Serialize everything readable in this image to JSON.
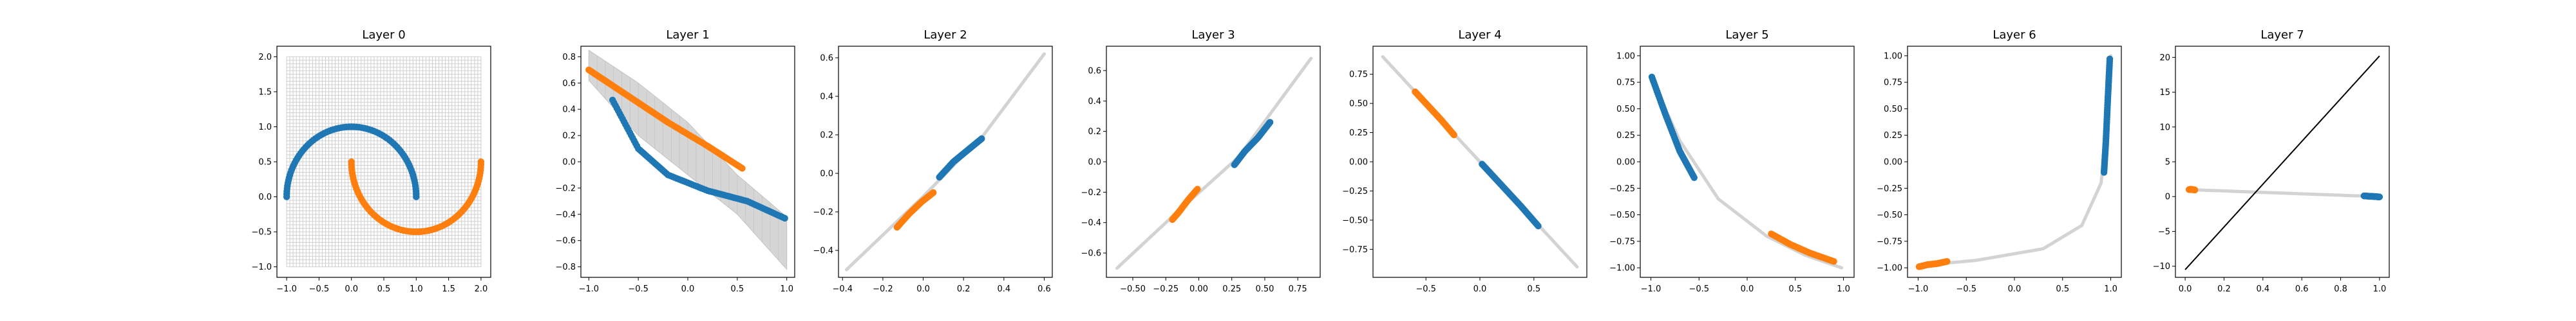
{
  "chart_data": [
    {
      "type": "scatter",
      "title": "Layer 0",
      "xlim": [
        -1.15,
        2.15
      ],
      "ylim": [
        -1.15,
        2.15
      ],
      "xticks": [
        -1.0,
        -0.5,
        0.0,
        0.5,
        1.0,
        1.5,
        2.0
      ],
      "yticks": [
        -1.0,
        -0.5,
        0.0,
        0.5,
        1.0,
        1.5,
        2.0
      ],
      "xtick_labels": [
        "−1.0",
        "−0.5",
        "0.0",
        "0.5",
        "1.0",
        "1.5",
        "2.0"
      ],
      "ytick_labels": [
        "−1.0",
        "−0.5",
        "0.0",
        "0.5",
        "1.0",
        "1.5",
        "2.0"
      ],
      "grid": "input mesh, x and y from -1.0 to 2.0",
      "series": [
        {
          "color": "#1f77b4",
          "shape": "upper half circle",
          "x": [
            -1.0,
            -0.866,
            -0.5,
            0.0,
            0.5,
            0.866,
            1.0
          ],
          "y": [
            0.0,
            0.5,
            0.866,
            1.0,
            0.866,
            0.5,
            0.0
          ]
        },
        {
          "color": "#ff7f0e",
          "shape": "lower half circle",
          "x": [
            0.0,
            0.134,
            0.5,
            1.0,
            1.5,
            1.866,
            2.0
          ],
          "y": [
            0.5,
            0.0,
            -0.366,
            -0.5,
            -0.366,
            0.0,
            0.5
          ]
        }
      ]
    },
    {
      "type": "scatter",
      "title": "Layer 1",
      "xlim": [
        -1.08,
        1.08
      ],
      "ylim": [
        -0.88,
        0.88
      ],
      "xticks": [
        -1.0,
        -0.5,
        0.0,
        0.5,
        1.0
      ],
      "yticks": [
        -0.8,
        -0.6,
        -0.4,
        -0.2,
        0.0,
        0.2,
        0.4,
        0.6,
        0.8
      ],
      "xtick_labels": [
        "−1.0",
        "−0.5",
        "0.0",
        "0.5",
        "1.0"
      ],
      "ytick_labels": [
        "−0.8",
        "−0.6",
        "−0.4",
        "−0.2",
        "0.0",
        "0.2",
        "0.4",
        "0.6",
        "0.8"
      ],
      "band": {
        "x": [
          -1.0,
          -0.5,
          0.0,
          0.5,
          1.0
        ],
        "upper": [
          0.85,
          0.6,
          0.3,
          -0.1,
          -0.42
        ],
        "lower": [
          0.62,
          0.2,
          -0.1,
          -0.4,
          -0.82
        ]
      },
      "series": [
        {
          "color": "#1f77b4",
          "x": [
            -0.76,
            -0.5,
            -0.2,
            0.2,
            0.6,
            0.98
          ],
          "y": [
            0.47,
            0.1,
            -0.1,
            -0.22,
            -0.3,
            -0.43
          ]
        },
        {
          "color": "#ff7f0e",
          "x": [
            -1.0,
            -0.8,
            -0.5,
            -0.2,
            0.2,
            0.55
          ],
          "y": [
            0.7,
            0.6,
            0.45,
            0.3,
            0.12,
            -0.05
          ]
        }
      ]
    },
    {
      "type": "scatter",
      "title": "Layer 2",
      "xlim": [
        -0.42,
        0.64
      ],
      "ylim": [
        -0.54,
        0.66
      ],
      "xticks": [
        -0.4,
        -0.2,
        0.0,
        0.2,
        0.4,
        0.6
      ],
      "yticks": [
        -0.4,
        -0.2,
        0.0,
        0.2,
        0.4,
        0.6
      ],
      "xtick_labels": [
        "−0.4",
        "−0.2",
        "0.0",
        "0.2",
        "0.4",
        "0.6"
      ],
      "ytick_labels": [
        "−0.4",
        "−0.2",
        "0.0",
        "0.2",
        "0.4",
        "0.6"
      ],
      "curve": {
        "x": [
          -0.38,
          0.0,
          0.3,
          0.6
        ],
        "y": [
          -0.5,
          -0.12,
          0.2,
          0.62
        ]
      },
      "series": [
        {
          "color": "#1f77b4",
          "x": [
            0.08,
            0.15,
            0.22,
            0.29
          ],
          "y": [
            -0.02,
            0.06,
            0.12,
            0.18
          ]
        },
        {
          "color": "#ff7f0e",
          "x": [
            -0.13,
            -0.07,
            -0.01,
            0.05
          ],
          "y": [
            -0.28,
            -0.21,
            -0.15,
            -0.1
          ]
        }
      ]
    },
    {
      "type": "scatter",
      "title": "Layer 3",
      "xlim": [
        -0.7,
        0.92
      ],
      "ylim": [
        -0.76,
        0.76
      ],
      "xticks": [
        -0.5,
        -0.25,
        0.0,
        0.25,
        0.5,
        0.75
      ],
      "yticks": [
        -0.6,
        -0.4,
        -0.2,
        0.0,
        0.2,
        0.4,
        0.6
      ],
      "xtick_labels": [
        "−0.50",
        "−0.25",
        "0.00",
        "0.25",
        "0.50",
        "0.75"
      ],
      "ytick_labels": [
        "−0.6",
        "−0.4",
        "−0.2",
        "0.0",
        "0.2",
        "0.4",
        "0.6"
      ],
      "curve": {
        "x": [
          -0.62,
          -0.2,
          0.3,
          0.85
        ],
        "y": [
          -0.7,
          -0.36,
          0.03,
          0.68
        ]
      },
      "series": [
        {
          "color": "#1f77b4",
          "x": [
            0.27,
            0.35,
            0.45,
            0.54
          ],
          "y": [
            -0.02,
            0.07,
            0.16,
            0.26
          ]
        },
        {
          "color": "#ff7f0e",
          "x": [
            -0.2,
            -0.15,
            -0.08,
            -0.01
          ],
          "y": [
            -0.38,
            -0.33,
            -0.25,
            -0.18
          ]
        }
      ]
    },
    {
      "type": "scatter",
      "title": "Layer 4",
      "xlim": [
        -0.99,
        0.99
      ],
      "ylim": [
        -0.99,
        0.99
      ],
      "xticks": [
        -0.5,
        0.0,
        0.5
      ],
      "yticks": [
        -0.75,
        -0.5,
        -0.25,
        0.0,
        0.25,
        0.5,
        0.75
      ],
      "xtick_labels": [
        "−0.5",
        "0.0",
        "0.5"
      ],
      "ytick_labels": [
        "−0.75",
        "−0.50",
        "−0.25",
        "0.00",
        "0.25",
        "0.50",
        "0.75"
      ],
      "curve": {
        "x": [
          -0.9,
          0.0,
          0.9
        ],
        "y": [
          0.9,
          0.0,
          -0.9
        ]
      },
      "series": [
        {
          "color": "#1f77b4",
          "x": [
            0.02,
            0.2,
            0.38,
            0.54
          ],
          "y": [
            -0.02,
            -0.2,
            -0.38,
            -0.55
          ]
        },
        {
          "color": "#ff7f0e",
          "x": [
            -0.6,
            -0.48,
            -0.36,
            -0.24
          ],
          "y": [
            0.6,
            0.48,
            0.36,
            0.23
          ]
        }
      ]
    },
    {
      "type": "scatter",
      "title": "Layer 5",
      "xlim": [
        -1.11,
        1.11
      ],
      "ylim": [
        -1.09,
        1.09
      ],
      "xticks": [
        -1.0,
        -0.5,
        0.0,
        0.5,
        1.0
      ],
      "yticks": [
        -1.0,
        -0.75,
        -0.5,
        -0.25,
        0.0,
        0.25,
        0.5,
        0.75,
        1.0
      ],
      "xtick_labels": [
        "−1.0",
        "−0.5",
        "0.0",
        "0.5",
        "1.0"
      ],
      "ytick_labels": [
        "−1.00",
        "−0.75",
        "−0.50",
        "−0.25",
        "0.00",
        "0.25",
        "0.50",
        "0.75",
        "1.00"
      ],
      "curve": {
        "x": [
          -1.0,
          -0.7,
          -0.3,
          0.2,
          0.6,
          0.98
        ],
        "y": [
          0.8,
          0.2,
          -0.35,
          -0.7,
          -0.88,
          -1.0
        ]
      },
      "series": [
        {
          "color": "#1f77b4",
          "x": [
            -0.99,
            -0.85,
            -0.7,
            -0.55
          ],
          "y": [
            0.8,
            0.45,
            0.1,
            -0.15
          ]
        },
        {
          "color": "#ff7f0e",
          "x": [
            0.25,
            0.45,
            0.65,
            0.9
          ],
          "y": [
            -0.68,
            -0.78,
            -0.86,
            -0.94
          ]
        }
      ]
    },
    {
      "type": "scatter",
      "title": "Layer 6",
      "xlim": [
        -1.11,
        1.11
      ],
      "ylim": [
        -1.09,
        1.09
      ],
      "xticks": [
        -1.0,
        -0.5,
        0.0,
        0.5,
        1.0
      ],
      "yticks": [
        -1.0,
        -0.75,
        -0.5,
        -0.25,
        0.0,
        0.25,
        0.5,
        0.75,
        1.0
      ],
      "xtick_labels": [
        "−1.0",
        "−0.5",
        "0.0",
        "0.5",
        "1.0"
      ],
      "ytick_labels": [
        "−1.00",
        "−0.75",
        "−0.50",
        "−0.25",
        "0.00",
        "0.25",
        "0.50",
        "0.75",
        "1.00"
      ],
      "curve": {
        "x": [
          -1.0,
          -0.4,
          0.3,
          0.7,
          0.9,
          0.97,
          1.0
        ],
        "y": [
          -0.98,
          -0.93,
          -0.82,
          -0.6,
          -0.2,
          0.4,
          1.0
        ]
      },
      "series": [
        {
          "color": "#1f77b4",
          "x": [
            0.93,
            0.95,
            0.97,
            0.99
          ],
          "y": [
            -0.1,
            0.2,
            0.6,
            0.97
          ]
        },
        {
          "color": "#ff7f0e",
          "x": [
            -0.99,
            -0.9,
            -0.8,
            -0.7
          ],
          "y": [
            -0.99,
            -0.97,
            -0.96,
            -0.94
          ]
        }
      ]
    },
    {
      "type": "scatter",
      "title": "Layer 7",
      "xlim": [
        -0.05,
        1.05
      ],
      "ylim": [
        -11.6,
        21.6
      ],
      "xticks": [
        0.0,
        0.2,
        0.4,
        0.6,
        0.8,
        1.0
      ],
      "yticks": [
        -10,
        -5,
        0,
        5,
        10,
        15,
        20
      ],
      "xtick_labels": [
        "0.0",
        "0.2",
        "0.4",
        "0.6",
        "0.8",
        "1.0"
      ],
      "ytick_labels": [
        "−10",
        "−5",
        "0",
        "5",
        "10",
        "15",
        "20"
      ],
      "decision_line": {
        "x": [
          0.0,
          1.0
        ],
        "y": [
          -10.5,
          20.2
        ]
      },
      "curve": {
        "x": [
          0.02,
          0.5,
          0.99
        ],
        "y": [
          1.0,
          0.5,
          0.0
        ]
      },
      "series": [
        {
          "color": "#1f77b4",
          "x": [
            0.92,
            0.95,
            0.98,
            1.0
          ],
          "y": [
            0.1,
            0.05,
            0.0,
            -0.05
          ]
        },
        {
          "color": "#ff7f0e",
          "x": [
            0.02,
            0.03,
            0.04,
            0.05
          ],
          "y": [
            1.0,
            1.05,
            1.0,
            0.95
          ]
        }
      ]
    }
  ]
}
